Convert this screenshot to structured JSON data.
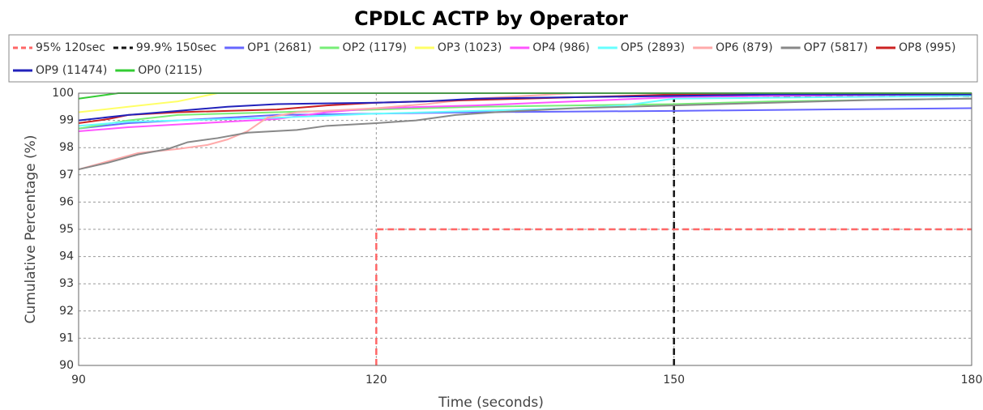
{
  "chart_data": {
    "type": "line",
    "title": "CPDLC ACTP by Operator",
    "xlabel": "Time (seconds)",
    "ylabel": "Cumulative Percentage (%)",
    "xlim": [
      90,
      180
    ],
    "xticks": [
      90,
      120,
      150,
      180
    ],
    "ylim": [
      90,
      100
    ],
    "yticks": [
      90,
      91,
      92,
      93,
      94,
      95,
      96,
      97,
      98,
      99,
      100
    ],
    "grid": true,
    "series": [
      {
        "name": "95% 120sec",
        "color": "#ff6666",
        "dash": true,
        "x": [
          120,
          120,
          180
        ],
        "values": [
          90,
          95,
          95
        ]
      },
      {
        "name": "99.9% 150sec",
        "color": "#111111",
        "dash": true,
        "x": [
          150,
          150,
          180
        ],
        "values": [
          90,
          99.9,
          99.9
        ]
      },
      {
        "name": "OP1 (2681)",
        "color": "#6666ff",
        "x": [
          90,
          95,
          100,
          105,
          110,
          120,
          130,
          150,
          165,
          180
        ],
        "values": [
          98.7,
          98.9,
          99.0,
          99.1,
          99.2,
          99.25,
          99.3,
          99.35,
          99.4,
          99.45
        ]
      },
      {
        "name": "OP2 (1179)",
        "color": "#77ee77",
        "x": [
          90,
          95,
          100,
          110,
          120,
          130,
          150,
          160,
          180
        ],
        "values": [
          98.7,
          99.0,
          99.2,
          99.3,
          99.4,
          99.5,
          99.6,
          99.7,
          99.8
        ]
      },
      {
        "name": "OP3 (1023)",
        "color": "#ffff66",
        "x": [
          90,
          95,
          100,
          104,
          180
        ],
        "values": [
          99.3,
          99.5,
          99.7,
          100,
          100
        ]
      },
      {
        "name": "OP4 (986)",
        "color": "#ff55ff",
        "x": [
          90,
          95,
          100,
          105,
          110,
          115,
          120,
          130,
          140,
          150,
          160,
          180
        ],
        "values": [
          98.6,
          98.75,
          98.85,
          98.95,
          99.05,
          99.3,
          99.45,
          99.55,
          99.7,
          99.85,
          99.9,
          99.95
        ]
      },
      {
        "name": "OP5 (2893)",
        "color": "#66ffff",
        "x": [
          90,
          95,
          100,
          110,
          120,
          130,
          140,
          145,
          150,
          165,
          180
        ],
        "values": [
          98.8,
          98.95,
          99.0,
          99.1,
          99.25,
          99.35,
          99.45,
          99.55,
          99.8,
          99.85,
          99.9
        ]
      },
      {
        "name": "OP6 (879)",
        "color": "#ffaaaa",
        "x": [
          90,
          93,
          96,
          100,
          103,
          105,
          107,
          109,
          112,
          120,
          125,
          130,
          135,
          140,
          180
        ],
        "values": [
          97.2,
          97.5,
          97.8,
          97.95,
          98.1,
          98.3,
          98.6,
          99.1,
          99.3,
          99.45,
          99.6,
          99.8,
          99.9,
          100,
          100
        ]
      },
      {
        "name": "OP7 (5817)",
        "color": "#888888",
        "x": [
          90,
          93,
          96,
          99,
          101,
          104,
          107,
          112,
          115,
          120,
          124,
          128,
          132,
          140,
          150,
          160,
          170,
          180
        ],
        "values": [
          97.2,
          97.45,
          97.75,
          97.95,
          98.2,
          98.35,
          98.55,
          98.65,
          98.8,
          98.9,
          99.0,
          99.2,
          99.3,
          99.45,
          99.55,
          99.65,
          99.75,
          99.8
        ]
      },
      {
        "name": "OP8 (995)",
        "color": "#cc2222",
        "x": [
          90,
          93,
          95,
          100,
          110,
          115,
          120,
          130,
          140,
          150,
          160,
          180
        ],
        "values": [
          98.9,
          99.05,
          99.2,
          99.3,
          99.4,
          99.55,
          99.65,
          99.75,
          99.85,
          99.95,
          100,
          100
        ]
      },
      {
        "name": "OP9 (11474)",
        "color": "#2222bb",
        "x": [
          90,
          95,
          100,
          105,
          110,
          120,
          125,
          130,
          140,
          150,
          160,
          180
        ],
        "values": [
          99.0,
          99.2,
          99.35,
          99.5,
          99.6,
          99.65,
          99.7,
          99.8,
          99.85,
          99.9,
          99.95,
          99.95
        ]
      },
      {
        "name": "OP0 (2115)",
        "color": "#33cc33",
        "x": [
          90,
          94,
          180
        ],
        "values": [
          99.8,
          100,
          100
        ]
      }
    ]
  }
}
